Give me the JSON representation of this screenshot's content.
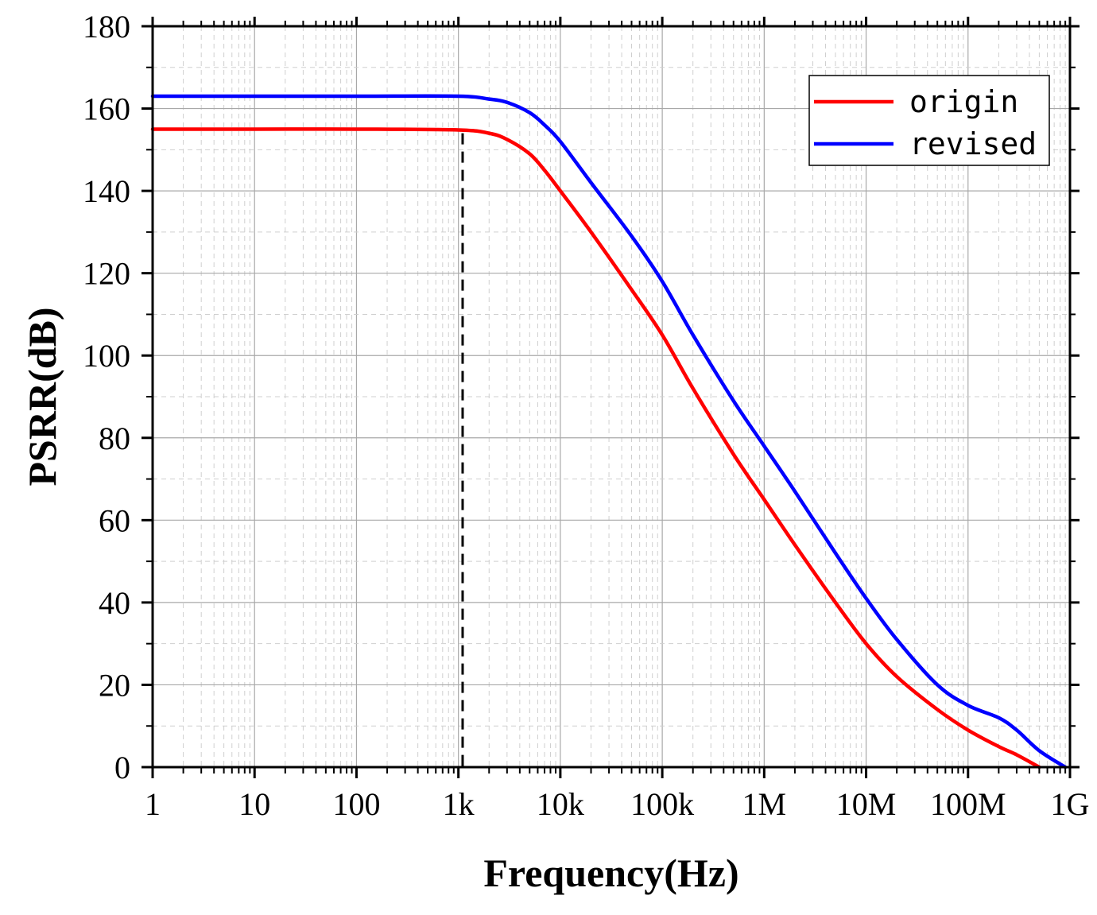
{
  "chart_data": {
    "type": "line",
    "xlabel": "Frequency(Hz)",
    "ylabel": "PSRR(dB)",
    "xscale": "log",
    "xlim": [
      1,
      1000000000
    ],
    "ylim": [
      0,
      180
    ],
    "x_ticks": [
      {
        "value": 1,
        "label": "1"
      },
      {
        "value": 10,
        "label": "10"
      },
      {
        "value": 100,
        "label": "100"
      },
      {
        "value": 1000,
        "label": "1k"
      },
      {
        "value": 10000,
        "label": "10k"
      },
      {
        "value": 100000,
        "label": "100k"
      },
      {
        "value": 1000000,
        "label": "1M"
      },
      {
        "value": 10000000,
        "label": "10M"
      },
      {
        "value": 100000000,
        "label": "100M"
      },
      {
        "value": 1000000000,
        "label": "1G"
      }
    ],
    "y_ticks": [
      0,
      20,
      40,
      60,
      80,
      100,
      120,
      140,
      160,
      180
    ],
    "grid": true,
    "legend_position": "top-right",
    "reference_line": {
      "x": 1100,
      "style": "dashed",
      "color": "#000000"
    },
    "series": [
      {
        "name": "origin",
        "color": "#ff0000",
        "points": [
          [
            1,
            155
          ],
          [
            10,
            155
          ],
          [
            100,
            155
          ],
          [
            1000,
            154.8
          ],
          [
            2000,
            154
          ],
          [
            3000,
            152.5
          ],
          [
            5000,
            149
          ],
          [
            7000,
            145
          ],
          [
            10000,
            140
          ],
          [
            20000,
            130
          ],
          [
            50000,
            116
          ],
          [
            100000,
            105
          ],
          [
            200000,
            92
          ],
          [
            500000,
            76
          ],
          [
            1000000,
            65
          ],
          [
            2000000,
            54
          ],
          [
            5000000,
            40
          ],
          [
            10000000,
            30
          ],
          [
            20000000,
            22
          ],
          [
            50000000,
            14
          ],
          [
            100000000,
            9
          ],
          [
            200000000,
            5
          ],
          [
            300000000,
            3
          ],
          [
            500000000,
            0
          ]
        ]
      },
      {
        "name": "revised",
        "color": "#0000ff",
        "points": [
          [
            1,
            163
          ],
          [
            10,
            163
          ],
          [
            100,
            163
          ],
          [
            1000,
            163
          ],
          [
            2000,
            162.3
          ],
          [
            3000,
            161.5
          ],
          [
            5000,
            159
          ],
          [
            7000,
            156
          ],
          [
            10000,
            152
          ],
          [
            20000,
            142
          ],
          [
            50000,
            129
          ],
          [
            100000,
            118
          ],
          [
            200000,
            105
          ],
          [
            500000,
            89
          ],
          [
            1000000,
            78
          ],
          [
            2000000,
            67
          ],
          [
            5000000,
            52
          ],
          [
            10000000,
            41
          ],
          [
            20000000,
            31
          ],
          [
            50000000,
            20
          ],
          [
            100000000,
            15
          ],
          [
            200000000,
            12
          ],
          [
            300000000,
            9
          ],
          [
            500000000,
            4
          ],
          [
            900000000,
            0
          ]
        ]
      }
    ]
  }
}
